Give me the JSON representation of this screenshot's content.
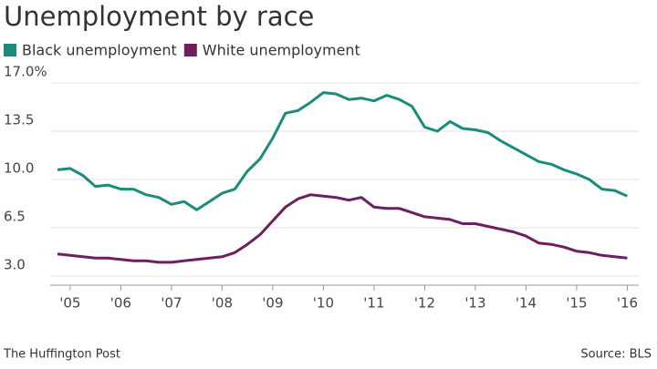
{
  "chart_data": {
    "type": "line",
    "title": "Unemployment by race",
    "x": [
      2004.75,
      2005,
      2005.25,
      2005.5,
      2005.75,
      2006,
      2006.25,
      2006.5,
      2006.75,
      2007,
      2007.25,
      2007.5,
      2007.75,
      2008,
      2008.25,
      2008.5,
      2008.75,
      2009,
      2009.25,
      2009.5,
      2009.75,
      2010,
      2010.25,
      2010.5,
      2010.75,
      2011,
      2011.25,
      2011.5,
      2011.75,
      2012,
      2012.25,
      2012.5,
      2012.75,
      2013,
      2013.25,
      2013.5,
      2013.75,
      2014,
      2014.25,
      2014.5,
      2014.75,
      2015,
      2015.25,
      2015.5,
      2015.75,
      2016
    ],
    "series": [
      {
        "name": "Black unemployment",
        "color": "#1b8c7c",
        "values": [
          10.7,
          10.8,
          10.3,
          9.5,
          9.6,
          9.3,
          9.3,
          8.9,
          8.7,
          8.2,
          8.4,
          7.8,
          8.4,
          9.0,
          9.3,
          10.6,
          11.5,
          13.0,
          14.8,
          15.0,
          15.6,
          16.3,
          16.2,
          15.8,
          15.9,
          15.7,
          16.1,
          15.8,
          15.3,
          13.8,
          13.5,
          14.2,
          13.7,
          13.6,
          13.4,
          12.8,
          12.3,
          11.8,
          11.3,
          11.1,
          10.7,
          10.4,
          10.0,
          9.3,
          9.2,
          8.8
        ]
      },
      {
        "name": "White unemployment",
        "color": "#6e1f5f",
        "values": [
          4.6,
          4.5,
          4.4,
          4.3,
          4.3,
          4.2,
          4.1,
          4.1,
          4.0,
          4.0,
          4.1,
          4.2,
          4.3,
          4.4,
          4.7,
          5.3,
          6.0,
          7.0,
          8.0,
          8.6,
          8.9,
          8.8,
          8.7,
          8.5,
          8.7,
          8.0,
          7.9,
          7.9,
          7.6,
          7.3,
          7.2,
          7.1,
          6.8,
          6.8,
          6.6,
          6.4,
          6.2,
          5.9,
          5.4,
          5.3,
          5.1,
          4.8,
          4.7,
          4.5,
          4.4,
          4.3
        ]
      }
    ],
    "ylim": [
      3,
      17
    ],
    "yticks": [
      {
        "value": 17,
        "label": "17.0%"
      },
      {
        "value": 13.5,
        "label": "13.5"
      },
      {
        "value": 10,
        "label": "10.0"
      },
      {
        "value": 6.5,
        "label": "6.5"
      },
      {
        "value": 3,
        "label": "3.0"
      }
    ],
    "xlim": [
      2004.75,
      2016.1
    ],
    "xticks": [
      {
        "value": 2005,
        "label": "'05"
      },
      {
        "value": 2006,
        "label": "'06"
      },
      {
        "value": 2007,
        "label": "'07"
      },
      {
        "value": 2008,
        "label": "'08"
      },
      {
        "value": 2009,
        "label": "'09"
      },
      {
        "value": 2010,
        "label": "'10"
      },
      {
        "value": 2011,
        "label": "'11"
      },
      {
        "value": 2012,
        "label": "'12"
      },
      {
        "value": 2013,
        "label": "'13"
      },
      {
        "value": 2014,
        "label": "'14"
      },
      {
        "value": 2015,
        "label": "'15"
      },
      {
        "value": 2016,
        "label": "'16"
      }
    ],
    "grid": true,
    "source": "Source: BLS",
    "credit": "The Huffington Post"
  }
}
